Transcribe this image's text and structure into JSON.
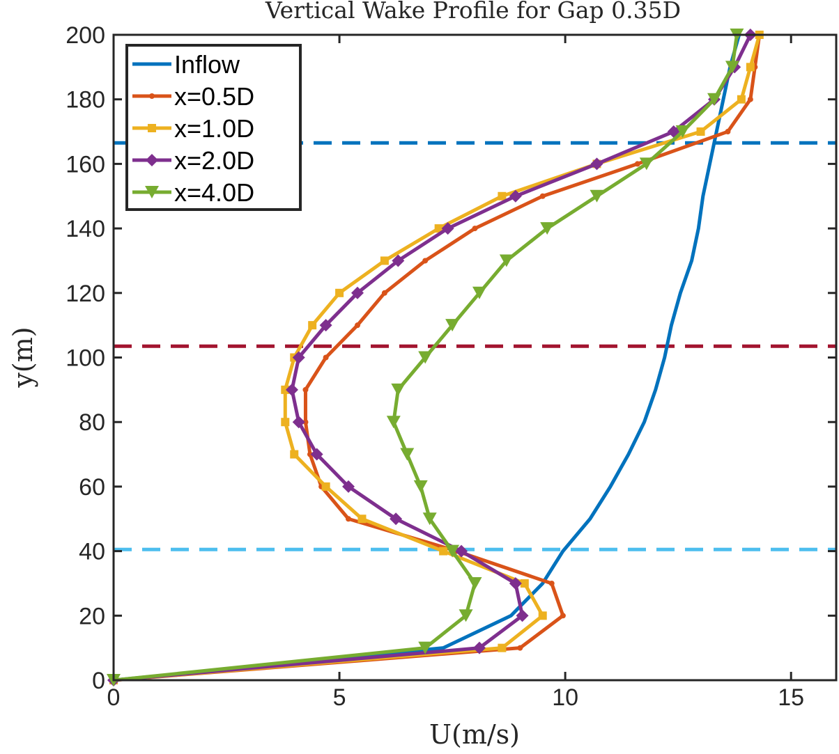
{
  "chart_data": {
    "type": "line",
    "title": "Vertical Wake Profile for Gap 0.35D",
    "xlabel": "U(m/s)",
    "ylabel": "y(m)",
    "xlim": [
      0,
      16
    ],
    "ylim": [
      0,
      200
    ],
    "xticks": [
      "0",
      "5",
      "10",
      "15"
    ],
    "yticks": [
      "0",
      "20",
      "40",
      "60",
      "80",
      "100",
      "120",
      "140",
      "160",
      "180",
      "200"
    ],
    "legend_position": "top-left",
    "series": [
      {
        "name": "Inflow",
        "color": "#0072BD",
        "marker": "none",
        "points": [
          [
            0,
            0
          ],
          [
            7.3,
            10
          ],
          [
            8.8,
            20
          ],
          [
            9.5,
            30
          ],
          [
            9.95,
            40
          ],
          [
            10.55,
            50
          ],
          [
            11.0,
            60
          ],
          [
            11.4,
            70
          ],
          [
            11.75,
            80
          ],
          [
            12.0,
            90
          ],
          [
            12.2,
            100
          ],
          [
            12.35,
            110
          ],
          [
            12.55,
            120
          ],
          [
            12.8,
            130
          ],
          [
            12.95,
            140
          ],
          [
            13.05,
            150
          ],
          [
            13.2,
            160
          ],
          [
            13.35,
            170
          ],
          [
            13.5,
            180
          ],
          [
            13.65,
            190
          ],
          [
            13.85,
            200
          ]
        ]
      },
      {
        "name": "x=0.5D",
        "color": "#D95319",
        "marker": "dot",
        "points": [
          [
            0,
            0
          ],
          [
            9.0,
            10
          ],
          [
            9.95,
            20
          ],
          [
            9.7,
            30
          ],
          [
            7.6,
            40
          ],
          [
            5.2,
            50
          ],
          [
            4.6,
            60
          ],
          [
            4.35,
            70
          ],
          [
            4.25,
            80
          ],
          [
            4.25,
            90
          ],
          [
            4.7,
            100
          ],
          [
            5.4,
            110
          ],
          [
            6.0,
            120
          ],
          [
            6.9,
            130
          ],
          [
            8.0,
            140
          ],
          [
            9.5,
            150
          ],
          [
            11.6,
            160
          ],
          [
            13.6,
            170
          ],
          [
            14.1,
            180
          ],
          [
            14.2,
            190
          ],
          [
            14.3,
            200
          ]
        ]
      },
      {
        "name": "x=1.0D",
        "color": "#EDB120",
        "marker": "square",
        "points": [
          [
            0,
            0
          ],
          [
            8.6,
            10
          ],
          [
            9.5,
            20
          ],
          [
            9.1,
            30
          ],
          [
            7.3,
            40
          ],
          [
            5.5,
            50
          ],
          [
            4.7,
            60
          ],
          [
            4.0,
            70
          ],
          [
            3.8,
            80
          ],
          [
            3.8,
            90
          ],
          [
            4.0,
            100
          ],
          [
            4.4,
            110
          ],
          [
            5.0,
            120
          ],
          [
            6.0,
            130
          ],
          [
            7.2,
            140
          ],
          [
            8.6,
            150
          ],
          [
            10.7,
            160
          ],
          [
            13.0,
            170
          ],
          [
            13.9,
            180
          ],
          [
            14.1,
            190
          ],
          [
            14.3,
            200
          ]
        ]
      },
      {
        "name": "x=2.0D",
        "color": "#7E2F8E",
        "marker": "diamond",
        "points": [
          [
            0,
            0
          ],
          [
            8.1,
            10
          ],
          [
            9.05,
            20
          ],
          [
            8.9,
            30
          ],
          [
            7.7,
            40
          ],
          [
            6.25,
            50
          ],
          [
            5.2,
            60
          ],
          [
            4.5,
            70
          ],
          [
            4.1,
            80
          ],
          [
            3.95,
            90
          ],
          [
            4.1,
            100
          ],
          [
            4.7,
            110
          ],
          [
            5.4,
            120
          ],
          [
            6.3,
            130
          ],
          [
            7.4,
            140
          ],
          [
            8.9,
            150
          ],
          [
            10.7,
            160
          ],
          [
            12.4,
            170
          ],
          [
            13.3,
            180
          ],
          [
            13.75,
            190
          ],
          [
            14.1,
            200
          ]
        ]
      },
      {
        "name": "x=4.0D",
        "color": "#77AC30",
        "marker": "triangle-down",
        "points": [
          [
            0,
            0
          ],
          [
            6.9,
            10
          ],
          [
            7.8,
            20
          ],
          [
            8.0,
            30
          ],
          [
            7.5,
            40
          ],
          [
            7.0,
            50
          ],
          [
            6.8,
            60
          ],
          [
            6.5,
            70
          ],
          [
            6.2,
            80
          ],
          [
            6.3,
            90
          ],
          [
            6.9,
            100
          ],
          [
            7.5,
            110
          ],
          [
            8.1,
            120
          ],
          [
            8.7,
            130
          ],
          [
            9.6,
            140
          ],
          [
            10.7,
            150
          ],
          [
            11.8,
            160
          ],
          [
            12.6,
            170
          ],
          [
            13.3,
            180
          ],
          [
            13.7,
            190
          ],
          [
            13.8,
            200
          ]
        ]
      }
    ],
    "reference_lines": [
      {
        "y": 166.5,
        "color": "#0072BD",
        "style": "dashed"
      },
      {
        "y": 103.5,
        "color": "#A2142F",
        "style": "dashed"
      },
      {
        "y": 40.5,
        "color": "#4DBEEE",
        "style": "dashed"
      }
    ]
  }
}
